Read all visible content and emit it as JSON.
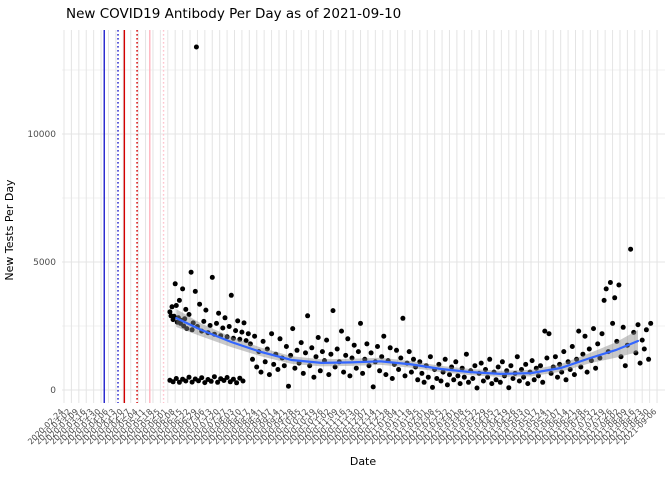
{
  "title": "New COVID19 Antibody Per Day as of 2021-09-10",
  "axes": {
    "x_label": "Date",
    "y_label": "New Tests Per Day",
    "y_tick_labels": [
      "0",
      "5000",
      "10000"
    ]
  },
  "colors": {
    "point": "#000000",
    "smooth_line": "#3366FF",
    "ci_ribbon": "#888888",
    "grid_major": "#e4e4e4",
    "grid_minor": "#f2f2f2",
    "axis_text": "#4d4d4d",
    "vline_blue": "#2020CC",
    "vline_red": "#D40000",
    "vline_pink": "#FFB3BE"
  },
  "chart_data": {
    "type": "scatter",
    "title": "New COVID19 Antibody Per Day as of 2021-09-10",
    "xlabel": "Date",
    "ylabel": "New Tests Per Day",
    "ylim": [
      -500,
      14060
    ],
    "y_ticks": [
      0,
      5000,
      10000
    ],
    "y_minor_ticks": [
      2500,
      7500,
      12500
    ],
    "grid": true,
    "legend": "none",
    "x_axis": {
      "start_date": "2020-02-24",
      "end_date": "2021-09-06",
      "tick_interval_days": 7,
      "tick_labels": [
        "2020-02-24",
        "2020-03-02",
        "2020-03-09",
        "2020-03-16",
        "2020-03-23",
        "2020-03-30",
        "2020-04-06",
        "2020-04-13",
        "2020-04-20",
        "2020-04-27",
        "2020-05-04",
        "2020-05-11",
        "2020-05-18",
        "2020-05-25",
        "2020-06-01",
        "2020-06-08",
        "2020-06-15",
        "2020-06-22",
        "2020-06-29",
        "2020-07-06",
        "2020-07-13",
        "2020-07-20",
        "2020-07-27",
        "2020-08-03",
        "2020-08-10",
        "2020-08-17",
        "2020-08-24",
        "2020-08-31",
        "2020-09-07",
        "2020-09-14",
        "2020-09-21",
        "2020-09-28",
        "2020-10-05",
        "2020-10-12",
        "2020-10-19",
        "2020-10-26",
        "2020-11-02",
        "2020-11-09",
        "2020-11-16",
        "2020-11-23",
        "2020-11-30",
        "2020-12-07",
        "2020-12-14",
        "2020-12-21",
        "2020-12-28",
        "2021-01-04",
        "2021-01-11",
        "2021-01-18",
        "2021-01-25",
        "2021-02-01",
        "2021-02-08",
        "2021-02-15",
        "2021-02-22",
        "2021-03-01",
        "2021-03-08",
        "2021-03-15",
        "2021-03-22",
        "2021-03-29",
        "2021-04-05",
        "2021-04-12",
        "2021-04-19",
        "2021-04-26",
        "2021-05-03",
        "2021-05-10",
        "2021-05-17",
        "2021-05-24",
        "2021-05-31",
        "2021-06-07",
        "2021-06-14",
        "2021-06-21",
        "2021-06-28",
        "2021-07-05",
        "2021-07-12",
        "2021-07-19",
        "2021-07-26",
        "2021-08-02",
        "2021-08-09",
        "2021-08-16",
        "2021-08-23",
        "2021-08-30",
        "2021-09-06"
      ]
    },
    "vlines": [
      {
        "day": 38,
        "color": "#2020CC",
        "style": "solid"
      },
      {
        "day": 51,
        "color": "#2020CC",
        "style": "dotted"
      },
      {
        "day": 57,
        "color": "#D40000",
        "style": "solid"
      },
      {
        "day": 69,
        "color": "#D40000",
        "style": "dotted"
      },
      {
        "day": 81,
        "color": "#FFB3BE",
        "style": "solid"
      },
      {
        "day": 94,
        "color": "#FFC4CE",
        "style": "dotted"
      }
    ],
    "smooth_line": {
      "color": "#3366FF",
      "points": [
        [
          106,
          2810
        ],
        [
          130,
          2340
        ],
        [
          158,
          1875
        ],
        [
          186,
          1485
        ],
        [
          215,
          1170
        ],
        [
          243,
          1060
        ],
        [
          271,
          1080
        ],
        [
          299,
          1120
        ],
        [
          328,
          1000
        ],
        [
          356,
          820
        ],
        [
          384,
          700
        ],
        [
          412,
          630
        ],
        [
          441,
          660
        ],
        [
          469,
          860
        ],
        [
          497,
          1250
        ],
        [
          521,
          1560
        ],
        [
          542,
          1915
        ]
      ],
      "ci_halfwidth": [
        350,
        250,
        200,
        170,
        150,
        140,
        140,
        140,
        130,
        120,
        120,
        120,
        130,
        150,
        200,
        300,
        430
      ]
    },
    "points": [
      [
        125,
        13400
      ],
      [
        100,
        380
      ],
      [
        103,
        320
      ],
      [
        106,
        450
      ],
      [
        109,
        300
      ],
      [
        112,
        420
      ],
      [
        115,
        350
      ],
      [
        118,
        500
      ],
      [
        121,
        310
      ],
      [
        124,
        430
      ],
      [
        127,
        360
      ],
      [
        130,
        480
      ],
      [
        133,
        290
      ],
      [
        136,
        410
      ],
      [
        139,
        340
      ],
      [
        142,
        520
      ],
      [
        145,
        300
      ],
      [
        148,
        440
      ],
      [
        151,
        370
      ],
      [
        154,
        490
      ],
      [
        157,
        320
      ],
      [
        160,
        420
      ],
      [
        163,
        280
      ],
      [
        166,
        460
      ],
      [
        169,
        350
      ],
      [
        100,
        3050
      ],
      [
        101,
        2900
      ],
      [
        102,
        3250
      ],
      [
        103,
        2750
      ],
      [
        104,
        2880
      ],
      [
        105,
        4150
      ],
      [
        106,
        3300
      ],
      [
        107,
        2650
      ],
      [
        108,
        2820
      ],
      [
        109,
        3500
      ],
      [
        110,
        2600
      ],
      [
        111,
        2720
      ],
      [
        112,
        3950
      ],
      [
        113,
        2500
      ],
      [
        114,
        2780
      ],
      [
        115,
        3150
      ],
      [
        116,
        2400
      ],
      [
        118,
        2950
      ],
      [
        120,
        4600
      ],
      [
        121,
        2350
      ],
      [
        122,
        2620
      ],
      [
        124,
        3850
      ],
      [
        126,
        2480
      ],
      [
        128,
        3350
      ],
      [
        130,
        2300
      ],
      [
        132,
        2680
      ],
      [
        134,
        3120
      ],
      [
        136,
        2240
      ],
      [
        138,
        2520
      ],
      [
        140,
        4400
      ],
      [
        142,
        2180
      ],
      [
        144,
        2600
      ],
      [
        146,
        3000
      ],
      [
        148,
        2120
      ],
      [
        150,
        2420
      ],
      [
        152,
        2820
      ],
      [
        154,
        2080
      ],
      [
        156,
        2480
      ],
      [
        158,
        3700
      ],
      [
        160,
        2020
      ],
      [
        162,
        2320
      ],
      [
        164,
        2700
      ],
      [
        166,
        1980
      ],
      [
        168,
        2260
      ],
      [
        170,
        2620
      ],
      [
        172,
        1930
      ],
      [
        174,
        2200
      ],
      [
        176,
        1800
      ],
      [
        178,
        1200
      ],
      [
        180,
        2100
      ],
      [
        182,
        900
      ],
      [
        184,
        1500
      ],
      [
        186,
        700
      ],
      [
        188,
        1900
      ],
      [
        190,
        1100
      ],
      [
        192,
        1600
      ],
      [
        194,
        600
      ],
      [
        196,
        2200
      ],
      [
        198,
        1000
      ],
      [
        200,
        1400
      ],
      [
        202,
        800
      ],
      [
        204,
        2000
      ],
      [
        206,
        1250
      ],
      [
        208,
        950
      ],
      [
        210,
        1700
      ],
      [
        212,
        150
      ],
      [
        214,
        1350
      ],
      [
        216,
        2400
      ],
      [
        218,
        850
      ],
      [
        220,
        1550
      ],
      [
        222,
        1050
      ],
      [
        224,
        1850
      ],
      [
        226,
        650
      ],
      [
        228,
        1450
      ],
      [
        230,
        2900
      ],
      [
        232,
        950
      ],
      [
        234,
        1650
      ],
      [
        236,
        500
      ],
      [
        238,
        1300
      ],
      [
        240,
        2050
      ],
      [
        242,
        750
      ],
      [
        244,
        1500
      ],
      [
        246,
        1150
      ],
      [
        248,
        1950
      ],
      [
        250,
        600
      ],
      [
        252,
        1400
      ],
      [
        254,
        3100
      ],
      [
        256,
        900
      ],
      [
        258,
        1600
      ],
      [
        260,
        1100
      ],
      [
        262,
        2300
      ],
      [
        264,
        700
      ],
      [
        266,
        1350
      ],
      [
        268,
        2000
      ],
      [
        270,
        550
      ],
      [
        272,
        1250
      ],
      [
        274,
        1750
      ],
      [
        276,
        850
      ],
      [
        278,
        1500
      ],
      [
        280,
        2600
      ],
      [
        282,
        650
      ],
      [
        284,
        1200
      ],
      [
        286,
        1800
      ],
      [
        288,
        950
      ],
      [
        290,
        1450
      ],
      [
        292,
        120
      ],
      [
        294,
        1100
      ],
      [
        296,
        1700
      ],
      [
        298,
        750
      ],
      [
        300,
        1300
      ],
      [
        302,
        2100
      ],
      [
        304,
        600
      ],
      [
        306,
        1150
      ],
      [
        308,
        1650
      ],
      [
        310,
        450
      ],
      [
        312,
        1000
      ],
      [
        314,
        1550
      ],
      [
        316,
        800
      ],
      [
        318,
        1250
      ],
      [
        320,
        2800
      ],
      [
        322,
        550
      ],
      [
        324,
        1050
      ],
      [
        326,
        1500
      ],
      [
        328,
        700
      ],
      [
        330,
        1200
      ],
      [
        332,
        900
      ],
      [
        334,
        400
      ],
      [
        336,
        1100
      ],
      [
        338,
        650
      ],
      [
        340,
        300
      ],
      [
        342,
        950
      ],
      [
        344,
        500
      ],
      [
        346,
        1300
      ],
      [
        348,
        100
      ],
      [
        350,
        800
      ],
      [
        352,
        450
      ],
      [
        354,
        1000
      ],
      [
        356,
        350
      ],
      [
        358,
        700
      ],
      [
        360,
        1200
      ],
      [
        362,
        200
      ],
      [
        364,
        600
      ],
      [
        366,
        900
      ],
      [
        368,
        400
      ],
      [
        370,
        1100
      ],
      [
        372,
        550
      ],
      [
        374,
        250
      ],
      [
        376,
        850
      ],
      [
        378,
        500
      ],
      [
        380,
        1400
      ],
      [
        382,
        300
      ],
      [
        384,
        750
      ],
      [
        386,
        450
      ],
      [
        388,
        950
      ],
      [
        390,
        80
      ],
      [
        392,
        650
      ],
      [
        394,
        1050
      ],
      [
        396,
        350
      ],
      [
        398,
        800
      ],
      [
        400,
        500
      ],
      [
        402,
        1200
      ],
      [
        404,
        250
      ],
      [
        406,
        700
      ],
      [
        408,
        400
      ],
      [
        410,
        900
      ],
      [
        412,
        300
      ],
      [
        414,
        1100
      ],
      [
        416,
        550
      ],
      [
        418,
        750
      ],
      [
        420,
        90
      ],
      [
        422,
        950
      ],
      [
        424,
        450
      ],
      [
        426,
        650
      ],
      [
        428,
        1300
      ],
      [
        430,
        350
      ],
      [
        432,
        800
      ],
      [
        434,
        500
      ],
      [
        436,
        1000
      ],
      [
        438,
        250
      ],
      [
        440,
        700
      ],
      [
        442,
        1150
      ],
      [
        444,
        400
      ],
      [
        446,
        850
      ],
      [
        448,
        550
      ],
      [
        450,
        950
      ],
      [
        452,
        300
      ],
      [
        454,
        2300
      ],
      [
        456,
        1250
      ],
      [
        458,
        2200
      ],
      [
        460,
        650
      ],
      [
        462,
        900
      ],
      [
        464,
        1300
      ],
      [
        466,
        500
      ],
      [
        468,
        1000
      ],
      [
        470,
        700
      ],
      [
        472,
        1500
      ],
      [
        474,
        400
      ],
      [
        476,
        1100
      ],
      [
        478,
        800
      ],
      [
        480,
        1700
      ],
      [
        482,
        600
      ],
      [
        484,
        1200
      ],
      [
        486,
        2300
      ],
      [
        488,
        900
      ],
      [
        490,
        1400
      ],
      [
        492,
        2100
      ],
      [
        494,
        700
      ],
      [
        496,
        1600
      ],
      [
        498,
        1150
      ],
      [
        500,
        2400
      ],
      [
        502,
        850
      ],
      [
        504,
        1800
      ],
      [
        506,
        1250
      ],
      [
        508,
        2200
      ],
      [
        510,
        3500
      ],
      [
        512,
        3950
      ],
      [
        514,
        1500
      ],
      [
        516,
        4200
      ],
      [
        518,
        2600
      ],
      [
        520,
        3600
      ],
      [
        522,
        1900
      ],
      [
        524,
        4100
      ],
      [
        526,
        1300
      ],
      [
        528,
        2450
      ],
      [
        530,
        950
      ],
      [
        532,
        1750
      ],
      [
        535,
        5500
      ],
      [
        538,
        2250
      ],
      [
        540,
        1450
      ],
      [
        542,
        2550
      ],
      [
        544,
        1050
      ],
      [
        546,
        1950
      ],
      [
        548,
        1600
      ],
      [
        550,
        2350
      ],
      [
        552,
        1200
      ],
      [
        554,
        2600
      ]
    ]
  }
}
